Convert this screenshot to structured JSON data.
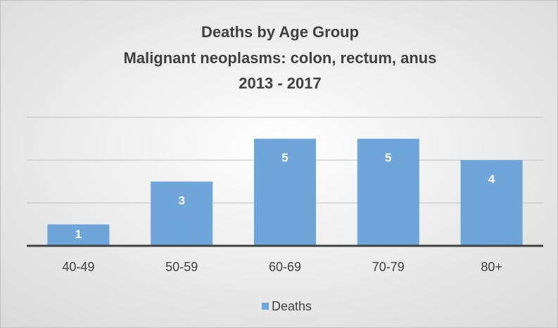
{
  "chart_data": {
    "type": "bar",
    "title": "Deaths by Age Group",
    "subtitle": [
      "Malignant neoplasms: colon, rectum, anus",
      "2013 - 2017"
    ],
    "categories": [
      "40-49",
      "50-59",
      "60-69",
      "70-79",
      "80+"
    ],
    "series": [
      {
        "name": "Deaths",
        "color": "#6fa6da",
        "values": [
          1,
          3,
          5,
          5,
          4
        ]
      }
    ],
    "ylim": [
      0,
      6
    ],
    "yticks": [
      0,
      2,
      4,
      6
    ],
    "grid": true,
    "legend": "bottom"
  }
}
